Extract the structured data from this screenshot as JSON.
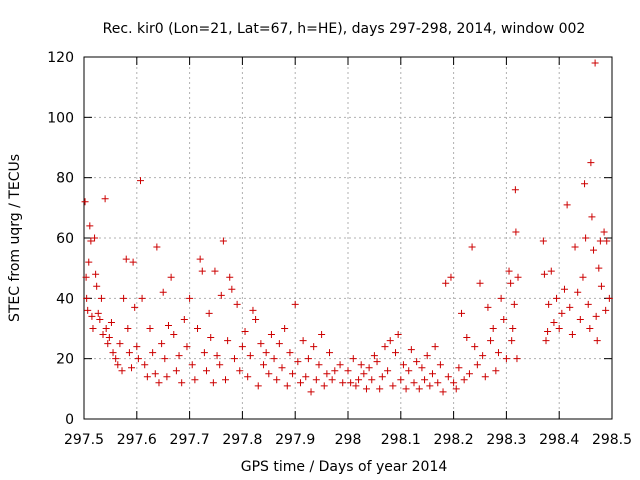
{
  "chart_data": {
    "type": "scatter",
    "title": "Rec. kir0 (Lon=21, Lat=67, h=HE), days 297-298, 2014, window 002",
    "xlabel": "GPS time / Days of year 2014",
    "ylabel": "STEC from uqrg / TECUs",
    "xlim": [
      297.5,
      298.5
    ],
    "ylim": [
      0,
      120
    ],
    "xticks": [
      297.5,
      297.6,
      297.7,
      297.8,
      297.9,
      298,
      298.1,
      298.2,
      298.3,
      298.4,
      298.5
    ],
    "xtick_labels": [
      "297.5",
      "297.6",
      "297.7",
      "297.8",
      "297.9",
      "298",
      "298.1",
      "298.2",
      "298.3",
      "298.4",
      "298.5"
    ],
    "yticks": [
      0,
      20,
      40,
      60,
      80,
      100,
      120
    ],
    "ytick_labels": [
      "0",
      "20",
      "40",
      "60",
      "80",
      "100",
      "120"
    ],
    "grid": true,
    "marker": "plus",
    "color": "#cc0000",
    "series": [
      {
        "points": [
          [
            297.502,
            72
          ],
          [
            297.504,
            47
          ],
          [
            297.505,
            40
          ],
          [
            297.507,
            36
          ],
          [
            297.509,
            52
          ],
          [
            297.511,
            64
          ],
          [
            297.513,
            59
          ],
          [
            297.515,
            34
          ],
          [
            297.517,
            30
          ],
          [
            297.52,
            60
          ],
          [
            297.522,
            48
          ],
          [
            297.524,
            44
          ],
          [
            297.527,
            35
          ],
          [
            297.53,
            33
          ],
          [
            297.533,
            40
          ],
          [
            297.536,
            28
          ],
          [
            297.54,
            73
          ],
          [
            297.542,
            30
          ],
          [
            297.545,
            25
          ],
          [
            297.548,
            27
          ],
          [
            297.552,
            32
          ],
          [
            297.555,
            22
          ],
          [
            297.56,
            20
          ],
          [
            297.564,
            18
          ],
          [
            297.568,
            25
          ],
          [
            297.572,
            16
          ],
          [
            297.575,
            40
          ],
          [
            297.58,
            53
          ],
          [
            297.583,
            30
          ],
          [
            297.586,
            22
          ],
          [
            297.59,
            17
          ],
          [
            297.593,
            52
          ],
          [
            297.596,
            37
          ],
          [
            297.6,
            24
          ],
          [
            297.603,
            20
          ],
          [
            297.607,
            79
          ],
          [
            297.61,
            40
          ],
          [
            297.615,
            18
          ],
          [
            297.62,
            14
          ],
          [
            297.625,
            30
          ],
          [
            297.63,
            22
          ],
          [
            297.635,
            15
          ],
          [
            297.638,
            57
          ],
          [
            297.642,
            12
          ],
          [
            297.647,
            25
          ],
          [
            297.65,
            42
          ],
          [
            297.653,
            20
          ],
          [
            297.657,
            14
          ],
          [
            297.66,
            31
          ],
          [
            297.665,
            47
          ],
          [
            297.67,
            28
          ],
          [
            297.675,
            16
          ],
          [
            297.68,
            21
          ],
          [
            297.685,
            12
          ],
          [
            297.69,
            33
          ],
          [
            297.695,
            24
          ],
          [
            297.7,
            40
          ],
          [
            297.705,
            18
          ],
          [
            297.71,
            13
          ],
          [
            297.715,
            30
          ],
          [
            297.72,
            53
          ],
          [
            297.724,
            49
          ],
          [
            297.728,
            22
          ],
          [
            297.732,
            16
          ],
          [
            297.737,
            35
          ],
          [
            297.74,
            27
          ],
          [
            297.745,
            12
          ],
          [
            297.748,
            49
          ],
          [
            297.752,
            21
          ],
          [
            297.757,
            18
          ],
          [
            297.76,
            41
          ],
          [
            297.764,
            59
          ],
          [
            297.768,
            13
          ],
          [
            297.772,
            26
          ],
          [
            297.776,
            47
          ],
          [
            297.78,
            43
          ],
          [
            297.785,
            20
          ],
          [
            297.79,
            38
          ],
          [
            297.795,
            16
          ],
          [
            297.8,
            24
          ],
          [
            297.805,
            29
          ],
          [
            297.81,
            14
          ],
          [
            297.815,
            21
          ],
          [
            297.82,
            36
          ],
          [
            297.825,
            33
          ],
          [
            297.83,
            11
          ],
          [
            297.835,
            25
          ],
          [
            297.84,
            18
          ],
          [
            297.845,
            22
          ],
          [
            297.85,
            15
          ],
          [
            297.855,
            28
          ],
          [
            297.86,
            20
          ],
          [
            297.865,
            13
          ],
          [
            297.87,
            25
          ],
          [
            297.875,
            17
          ],
          [
            297.88,
            30
          ],
          [
            297.885,
            11
          ],
          [
            297.89,
            22
          ],
          [
            297.895,
            15
          ],
          [
            297.9,
            38
          ],
          [
            297.905,
            19
          ],
          [
            297.91,
            12
          ],
          [
            297.915,
            26
          ],
          [
            297.92,
            14
          ],
          [
            297.925,
            20
          ],
          [
            297.93,
            9
          ],
          [
            297.935,
            24
          ],
          [
            297.94,
            13
          ],
          [
            297.945,
            18
          ],
          [
            297.95,
            28
          ],
          [
            297.955,
            11
          ],
          [
            297.96,
            15
          ],
          [
            297.965,
            22
          ],
          [
            297.97,
            13
          ],
          [
            297.975,
            16
          ],
          [
            297.985,
            18
          ],
          [
            297.99,
            12
          ],
          [
            298.0,
            16
          ],
          [
            298.005,
            12
          ],
          [
            298.01,
            20
          ],
          [
            298.015,
            11
          ],
          [
            298.02,
            13
          ],
          [
            298.025,
            18
          ],
          [
            298.03,
            15
          ],
          [
            298.035,
            10
          ],
          [
            298.04,
            17
          ],
          [
            298.045,
            13
          ],
          [
            298.05,
            21
          ],
          [
            298.055,
            19
          ],
          [
            298.06,
            10
          ],
          [
            298.065,
            14
          ],
          [
            298.07,
            24
          ],
          [
            298.075,
            16
          ],
          [
            298.08,
            26
          ],
          [
            298.085,
            11
          ],
          [
            298.09,
            22
          ],
          [
            298.095,
            28
          ],
          [
            298.1,
            13
          ],
          [
            298.105,
            18
          ],
          [
            298.11,
            10
          ],
          [
            298.115,
            16
          ],
          [
            298.12,
            23
          ],
          [
            298.125,
            12
          ],
          [
            298.13,
            19
          ],
          [
            298.135,
            10
          ],
          [
            298.14,
            17
          ],
          [
            298.145,
            13
          ],
          [
            298.15,
            21
          ],
          [
            298.155,
            11
          ],
          [
            298.16,
            15
          ],
          [
            298.165,
            24
          ],
          [
            298.17,
            12
          ],
          [
            298.175,
            18
          ],
          [
            298.18,
            9
          ],
          [
            298.185,
            45
          ],
          [
            298.19,
            14
          ],
          [
            298.195,
            47
          ],
          [
            298.2,
            12
          ],
          [
            298.205,
            10
          ],
          [
            298.21,
            17
          ],
          [
            298.215,
            35
          ],
          [
            298.22,
            13
          ],
          [
            298.225,
            27
          ],
          [
            298.23,
            15
          ],
          [
            298.235,
            57
          ],
          [
            298.24,
            24
          ],
          [
            298.245,
            18
          ],
          [
            298.25,
            45
          ],
          [
            298.255,
            21
          ],
          [
            298.26,
            14
          ],
          [
            298.265,
            37
          ],
          [
            298.27,
            26
          ],
          [
            298.275,
            30
          ],
          [
            298.28,
            16
          ],
          [
            298.285,
            22
          ],
          [
            298.29,
            40
          ],
          [
            298.295,
            33
          ],
          [
            298.3,
            20
          ],
          [
            298.305,
            49
          ],
          [
            298.308,
            45
          ],
          [
            298.31,
            26
          ],
          [
            298.312,
            30
          ],
          [
            298.315,
            38
          ],
          [
            298.317,
            76
          ],
          [
            298.318,
            62
          ],
          [
            298.32,
            20
          ],
          [
            298.322,
            47
          ],
          [
            298.37,
            59
          ],
          [
            298.372,
            48
          ],
          [
            298.375,
            26
          ],
          [
            298.378,
            29
          ],
          [
            298.38,
            38
          ],
          [
            298.385,
            49
          ],
          [
            298.39,
            32
          ],
          [
            298.395,
            40
          ],
          [
            298.4,
            30
          ],
          [
            298.405,
            35
          ],
          [
            298.41,
            43
          ],
          [
            298.415,
            71
          ],
          [
            298.42,
            37
          ],
          [
            298.425,
            28
          ],
          [
            298.43,
            57
          ],
          [
            298.435,
            42
          ],
          [
            298.44,
            33
          ],
          [
            298.445,
            47
          ],
          [
            298.448,
            78
          ],
          [
            298.45,
            60
          ],
          [
            298.455,
            38
          ],
          [
            298.458,
            30
          ],
          [
            298.46,
            85
          ],
          [
            298.462,
            67
          ],
          [
            298.465,
            56
          ],
          [
            298.468,
            118
          ],
          [
            298.47,
            34
          ],
          [
            298.472,
            26
          ],
          [
            298.475,
            50
          ],
          [
            298.478,
            59
          ],
          [
            298.48,
            44
          ],
          [
            298.485,
            62
          ],
          [
            298.488,
            36
          ],
          [
            298.49,
            59
          ],
          [
            298.495,
            40
          ]
        ]
      }
    ]
  }
}
